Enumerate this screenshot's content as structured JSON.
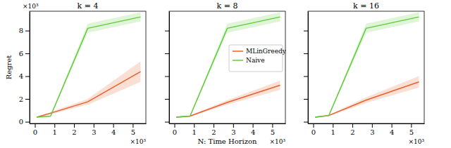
{
  "chart_data": [
    {
      "type": "line",
      "title": "k = 4",
      "ylabel": "Regret",
      "x": [
        0.1,
        0.8,
        2.7,
        5.4
      ],
      "xlim": [
        -0.27,
        5.67
      ],
      "ylim": [
        -0.15,
        9.7
      ],
      "xticks": [
        0,
        1,
        2,
        3,
        4,
        5
      ],
      "yticks": [
        0,
        2,
        4,
        6,
        8
      ],
      "annotations": {
        "x": "×10³",
        "y": "×10³"
      },
      "series": [
        {
          "name": "MLinGreedy",
          "color": "#e8602c",
          "values": [
            0.4,
            0.75,
            1.75,
            4.4
          ],
          "lower": [
            0.35,
            0.65,
            1.5,
            3.5
          ],
          "upper": [
            0.45,
            0.85,
            2.0,
            5.3
          ]
        },
        {
          "name": "Naive",
          "color": "#62cc3c",
          "values": [
            0.4,
            0.5,
            8.2,
            9.2
          ],
          "lower": [
            0.35,
            0.45,
            7.8,
            8.8
          ],
          "upper": [
            0.45,
            0.55,
            8.6,
            9.6
          ]
        }
      ]
    },
    {
      "type": "line",
      "title": "k = 8",
      "xlabel": "N: Time Horizon",
      "legend": "right",
      "tick_labels": "x",
      "x": [
        0.1,
        0.8,
        2.7,
        5.4
      ],
      "xlim": [
        -0.27,
        5.67
      ],
      "ylim": [
        -0.15,
        9.7
      ],
      "xticks": [
        0,
        1,
        2,
        3,
        4,
        5
      ],
      "yticks": [
        0,
        2,
        4,
        6,
        8
      ],
      "annotations": {
        "x": "×10³"
      },
      "series": [
        {
          "name": "MLinGreedy",
          "color": "#e8602c",
          "values": [
            0.4,
            0.5,
            1.7,
            3.2
          ],
          "lower": [
            0.35,
            0.45,
            1.5,
            2.8
          ],
          "upper": [
            0.45,
            0.55,
            1.9,
            3.6
          ]
        },
        {
          "name": "Naive",
          "color": "#62cc3c",
          "values": [
            0.4,
            0.5,
            8.2,
            9.2
          ],
          "lower": [
            0.35,
            0.45,
            7.8,
            8.8
          ],
          "upper": [
            0.45,
            0.55,
            8.6,
            9.6
          ]
        }
      ]
    },
    {
      "type": "line",
      "title": "k = 16",
      "tick_labels": "x",
      "x": [
        0.1,
        0.8,
        2.7,
        5.4
      ],
      "xlim": [
        -0.27,
        5.67
      ],
      "ylim": [
        -0.15,
        9.7
      ],
      "xticks": [
        0,
        1,
        2,
        3,
        4,
        5
      ],
      "yticks": [
        0,
        2,
        4,
        6,
        8
      ],
      "annotations": {
        "x": "×10³"
      },
      "series": [
        {
          "name": "MLinGreedy",
          "color": "#e8602c",
          "values": [
            0.4,
            0.55,
            1.9,
            3.5
          ],
          "lower": [
            0.35,
            0.5,
            1.65,
            3.0
          ],
          "upper": [
            0.45,
            0.6,
            2.15,
            4.0
          ]
        },
        {
          "name": "Naive",
          "color": "#62cc3c",
          "values": [
            0.4,
            0.55,
            8.2,
            9.2
          ],
          "lower": [
            0.35,
            0.5,
            7.8,
            8.8
          ],
          "upper": [
            0.45,
            0.6,
            8.6,
            9.6
          ]
        }
      ]
    }
  ]
}
